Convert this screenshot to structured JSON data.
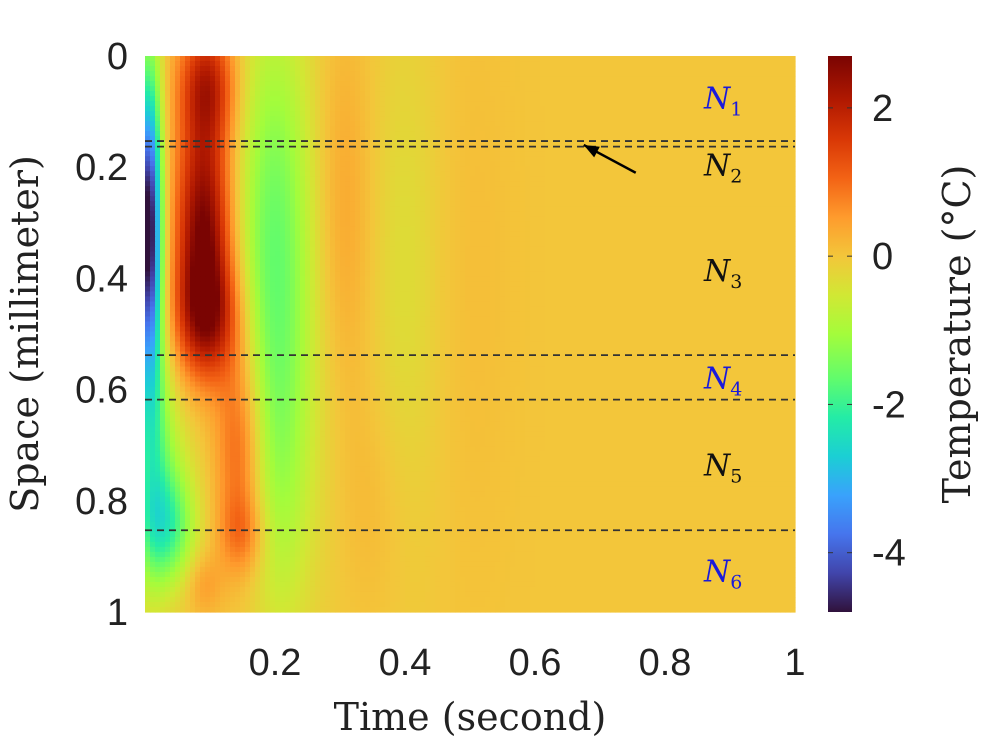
{
  "chart_data": {
    "type": "heatmap",
    "title": "",
    "xlabel": "Time (second)",
    "ylabel": "Space (millimeter)",
    "colorbar_label": "Temperature (°C)",
    "xlim": [
      0,
      1
    ],
    "ylim": [
      0,
      1
    ],
    "y_reversed": true,
    "clim": [
      -4.8,
      2.7
    ],
    "colormap": "turbo",
    "x_ticks": [
      0.2,
      0.4,
      0.6,
      0.8,
      1
    ],
    "x_tick_labels": [
      "0.2",
      "0.4",
      "0.6",
      "0.8",
      "1"
    ],
    "y_ticks": [
      0,
      0.2,
      0.4,
      0.6,
      0.8,
      1
    ],
    "y_tick_labels": [
      "0",
      "0.2",
      "0.4",
      "0.6",
      "0.8",
      "1"
    ],
    "colorbar_ticks": [
      2,
      0,
      -2,
      -4
    ],
    "colorbar_tick_labels": [
      "2",
      "0",
      "-2",
      "-4"
    ],
    "boundaries": [
      0.153,
      0.163,
      0.538,
      0.618,
      0.853
    ],
    "regions": [
      {
        "name": "N",
        "sub": "1",
        "x": 0.86,
        "y": 0.075,
        "color": "#1a1adb"
      },
      {
        "name": "N",
        "sub": "2",
        "x": 0.86,
        "y": 0.195,
        "color": "#111111"
      },
      {
        "name": "N",
        "sub": "3",
        "x": 0.86,
        "y": 0.385,
        "color": "#111111"
      },
      {
        "name": "N",
        "sub": "4",
        "x": 0.86,
        "y": 0.578,
        "color": "#1a1adb"
      },
      {
        "name": "N",
        "sub": "5",
        "x": 0.86,
        "y": 0.735,
        "color": "#111111"
      },
      {
        "name": "N",
        "sub": "6",
        "x": 0.86,
        "y": 0.925,
        "color": "#1a1adb"
      }
    ],
    "arrow": {
      "from": [
        0.755,
        0.21
      ],
      "to": [
        0.675,
        0.16
      ]
    },
    "features": [
      {
        "x": 0.005,
        "y": 0.3,
        "sx": 0.013,
        "sy": 0.17,
        "amp": -3.8
      },
      {
        "x": 0.008,
        "y": 0.35,
        "sx": 0.015,
        "sy": 0.3,
        "amp": -1.2
      },
      {
        "x": 0.01,
        "y": 0.65,
        "sx": 0.022,
        "sy": 0.2,
        "amp": -0.9
      },
      {
        "x": 0.035,
        "y": 0.85,
        "sx": 0.03,
        "sy": 0.07,
        "amp": -1.5
      },
      {
        "x": 0.03,
        "y": 0.75,
        "sx": 0.03,
        "sy": 0.12,
        "amp": -0.7
      },
      {
        "x": 0.095,
        "y": 0.05,
        "sx": 0.03,
        "sy": 0.08,
        "amp": 1.9
      },
      {
        "x": 0.09,
        "y": 0.3,
        "sx": 0.03,
        "sy": 0.13,
        "amp": 2.6
      },
      {
        "x": 0.095,
        "y": 0.47,
        "sx": 0.035,
        "sy": 0.08,
        "amp": 2.0
      },
      {
        "x": 0.145,
        "y": 0.7,
        "sx": 0.025,
        "sy": 0.13,
        "amp": 1.2
      },
      {
        "x": 0.15,
        "y": 0.86,
        "sx": 0.025,
        "sy": 0.05,
        "amp": 0.7
      },
      {
        "x": 0.195,
        "y": 0.35,
        "sx": 0.04,
        "sy": 0.3,
        "amp": -1.4
      },
      {
        "x": 0.21,
        "y": 0.8,
        "sx": 0.03,
        "sy": 0.2,
        "amp": -0.5
      },
      {
        "x": 0.25,
        "y": 0.45,
        "sx": 0.05,
        "sy": 0.35,
        "amp": -0.4
      },
      {
        "x": 0.3,
        "y": 0.3,
        "sx": 0.035,
        "sy": 0.25,
        "amp": 0.55
      },
      {
        "x": 0.35,
        "y": 0.8,
        "sx": 0.04,
        "sy": 0.15,
        "amp": 0.2
      },
      {
        "x": 0.4,
        "y": 0.4,
        "sx": 0.04,
        "sy": 0.35,
        "amp": -0.35
      },
      {
        "x": 0.5,
        "y": 0.4,
        "sx": 0.05,
        "sy": 0.4,
        "amp": 0.1
      },
      {
        "x": 0.09,
        "y": 0.95,
        "sx": 0.02,
        "sy": 0.04,
        "amp": 0.5
      }
    ]
  }
}
